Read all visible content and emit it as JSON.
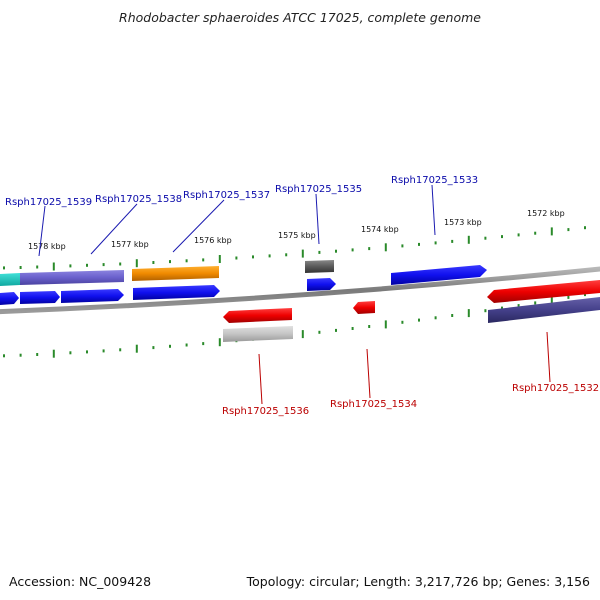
{
  "title": "Rhodobacter sphaeroides ATCC 17025, complete genome",
  "accession": "Accession: NC_009428",
  "topology": "Topology: circular; Length: 3,217,726 bp; Genes: 3,156",
  "colors": {
    "forward_label": "#0a0aaa",
    "reverse_label": "#bb0000",
    "tick": "#2a8a2a",
    "backbone": "#8a8a8a"
  },
  "ticks": [
    "1578 kbp",
    "1577 kbp",
    "1576 kbp",
    "1575 kbp",
    "1574 kbp",
    "1573 kbp",
    "1572 kbp"
  ],
  "gene_labels": [
    {
      "text": "Rsph17025_1539",
      "strand": "forward"
    },
    {
      "text": "Rsph17025_1538",
      "strand": "forward"
    },
    {
      "text": "Rsph17025_1537",
      "strand": "forward"
    },
    {
      "text": "Rsph17025_1535",
      "strand": "forward"
    },
    {
      "text": "Rsph17025_1533",
      "strand": "forward"
    },
    {
      "text": "Rsph17025_1536",
      "strand": "reverse"
    },
    {
      "text": "Rsph17025_1534",
      "strand": "reverse"
    },
    {
      "text": "Rsph17025_1532",
      "strand": "reverse"
    }
  ]
}
